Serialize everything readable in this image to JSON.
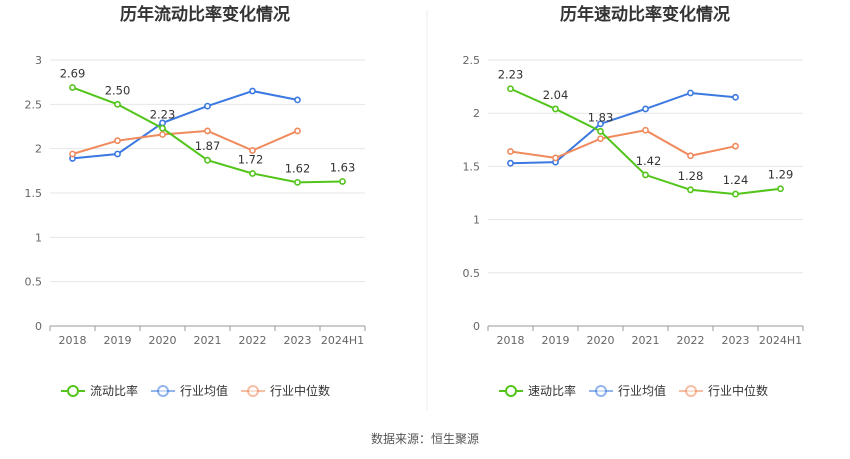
{
  "source": "数据来源：恒生聚源",
  "chart_data": [
    {
      "type": "line",
      "title": "历年流动比率变化情况",
      "categories": [
        "2018",
        "2019",
        "2020",
        "2021",
        "2022",
        "2023",
        "2024H1"
      ],
      "ylim": [
        0,
        3
      ],
      "yticks": [
        "0",
        "0.5",
        "1",
        "1.5",
        "2",
        "2.5",
        "3"
      ],
      "grid": true,
      "legend_position": "bottom",
      "series": [
        {
          "name": "流动比率",
          "color": "#52c41a",
          "labeled": true,
          "values": [
            2.69,
            2.5,
            2.23,
            1.87,
            1.72,
            1.62,
            1.63
          ],
          "labels": [
            "2.69",
            "2.50",
            "2.23",
            "1.87",
            "1.72",
            "1.62",
            "1.63"
          ]
        },
        {
          "name": "行业均值",
          "color": "#3b78e0",
          "labeled": false,
          "values": [
            1.89,
            1.94,
            2.29,
            2.48,
            2.65,
            2.55,
            null
          ]
        },
        {
          "name": "行业中位数",
          "color": "#f08a5d",
          "labeled": false,
          "values": [
            1.94,
            2.09,
            2.16,
            2.2,
            1.98,
            2.2,
            null
          ]
        }
      ]
    },
    {
      "type": "line",
      "title": "历年速动比率变化情况",
      "categories": [
        "2018",
        "2019",
        "2020",
        "2021",
        "2022",
        "2023",
        "2024H1"
      ],
      "ylim": [
        0,
        2.5
      ],
      "yticks": [
        "0",
        "0.5",
        "1",
        "1.5",
        "2",
        "2.5"
      ],
      "grid": true,
      "legend_position": "bottom",
      "series": [
        {
          "name": "速动比率",
          "color": "#52c41a",
          "labeled": true,
          "values": [
            2.23,
            2.04,
            1.83,
            1.42,
            1.28,
            1.24,
            1.29
          ],
          "labels": [
            "2.23",
            "2.04",
            "1.83",
            "1.42",
            "1.28",
            "1.24",
            "1.29"
          ]
        },
        {
          "name": "行业均值",
          "color": "#3b78e0",
          "labeled": false,
          "values": [
            1.53,
            1.54,
            1.9,
            2.04,
            2.19,
            2.15,
            null
          ]
        },
        {
          "name": "行业中位数",
          "color": "#f08a5d",
          "labeled": false,
          "values": [
            1.64,
            1.58,
            1.76,
            1.84,
            1.6,
            1.69,
            null
          ]
        }
      ]
    }
  ]
}
